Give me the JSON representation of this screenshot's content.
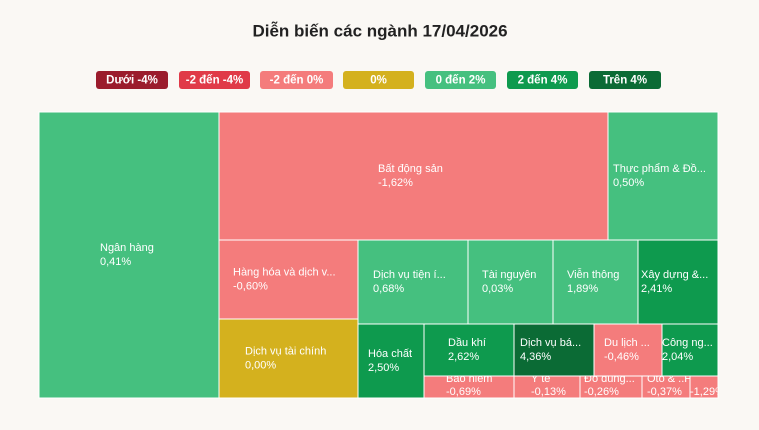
{
  "chart_data": {
    "type": "treemap",
    "title": "Diễn biến các ngành 17/04/2026",
    "legend": [
      {
        "label": "Dưới -4%",
        "color": "#9b1c2c"
      },
      {
        "label": "-2 đến -4%",
        "color": "#e03a48"
      },
      {
        "label": "-2 đến 0%",
        "color": "#f47c7c"
      },
      {
        "label": "0%",
        "color": "#d4b11e"
      },
      {
        "label": "0 đến 2%",
        "color": "#45c07f"
      },
      {
        "label": "2 đến 4%",
        "color": "#0e9a4e"
      },
      {
        "label": "Trên 4%",
        "color": "#0b6b35"
      }
    ],
    "categories": [
      "Ngân hàng",
      "Bất động sản",
      "Thực phẩm & Đồ...",
      "Hàng hóa và dịch v...",
      "Dịch vụ tài chính",
      "Dịch vụ tiện í...",
      "Tài nguyên",
      "Viễn thông",
      "Xây dựng &...",
      "Hóa chất",
      "Dầu khí",
      "Dịch vụ bá...",
      "Du lịch ...",
      "Công ng...",
      "Bảo hiểm",
      "Y tế",
      "Đồ dùng...",
      "Ôtô & ..Ph...",
      null
    ],
    "values": [
      0.41,
      -1.62,
      0.5,
      -0.6,
      0,
      0.68,
      0.03,
      1.89,
      2.41,
      2.5,
      2.62,
      4.36,
      -0.46,
      2.04,
      -0.69,
      -0.13,
      -0.26,
      -0.37,
      -1.29
    ],
    "value_labels": [
      "0,41%",
      "-1,62%",
      "0,50%",
      "-0,60%",
      "0,00%",
      "0,68%",
      "0,03%",
      "1,89%",
      "2,41%",
      "2,50%",
      "2,62%",
      "4,36%",
      "-0,46%",
      "2,04%",
      "-0,69%",
      "-0,13%",
      "-0,26%",
      "-0,37%",
      "-1,29%"
    ],
    "colors": [
      "#45c07f",
      "#f47c7c",
      "#45c07f",
      "#f47c7c",
      "#d4b11e",
      "#45c07f",
      "#45c07f",
      "#45c07f",
      "#0e9a4e",
      "#0e9a4e",
      "#0e9a4e",
      "#0b6b35",
      "#f47c7c",
      "#0e9a4e",
      "#f47c7c",
      "#f47c7c",
      "#f47c7c",
      "#f47c7c",
      "#f47c7c"
    ]
  }
}
